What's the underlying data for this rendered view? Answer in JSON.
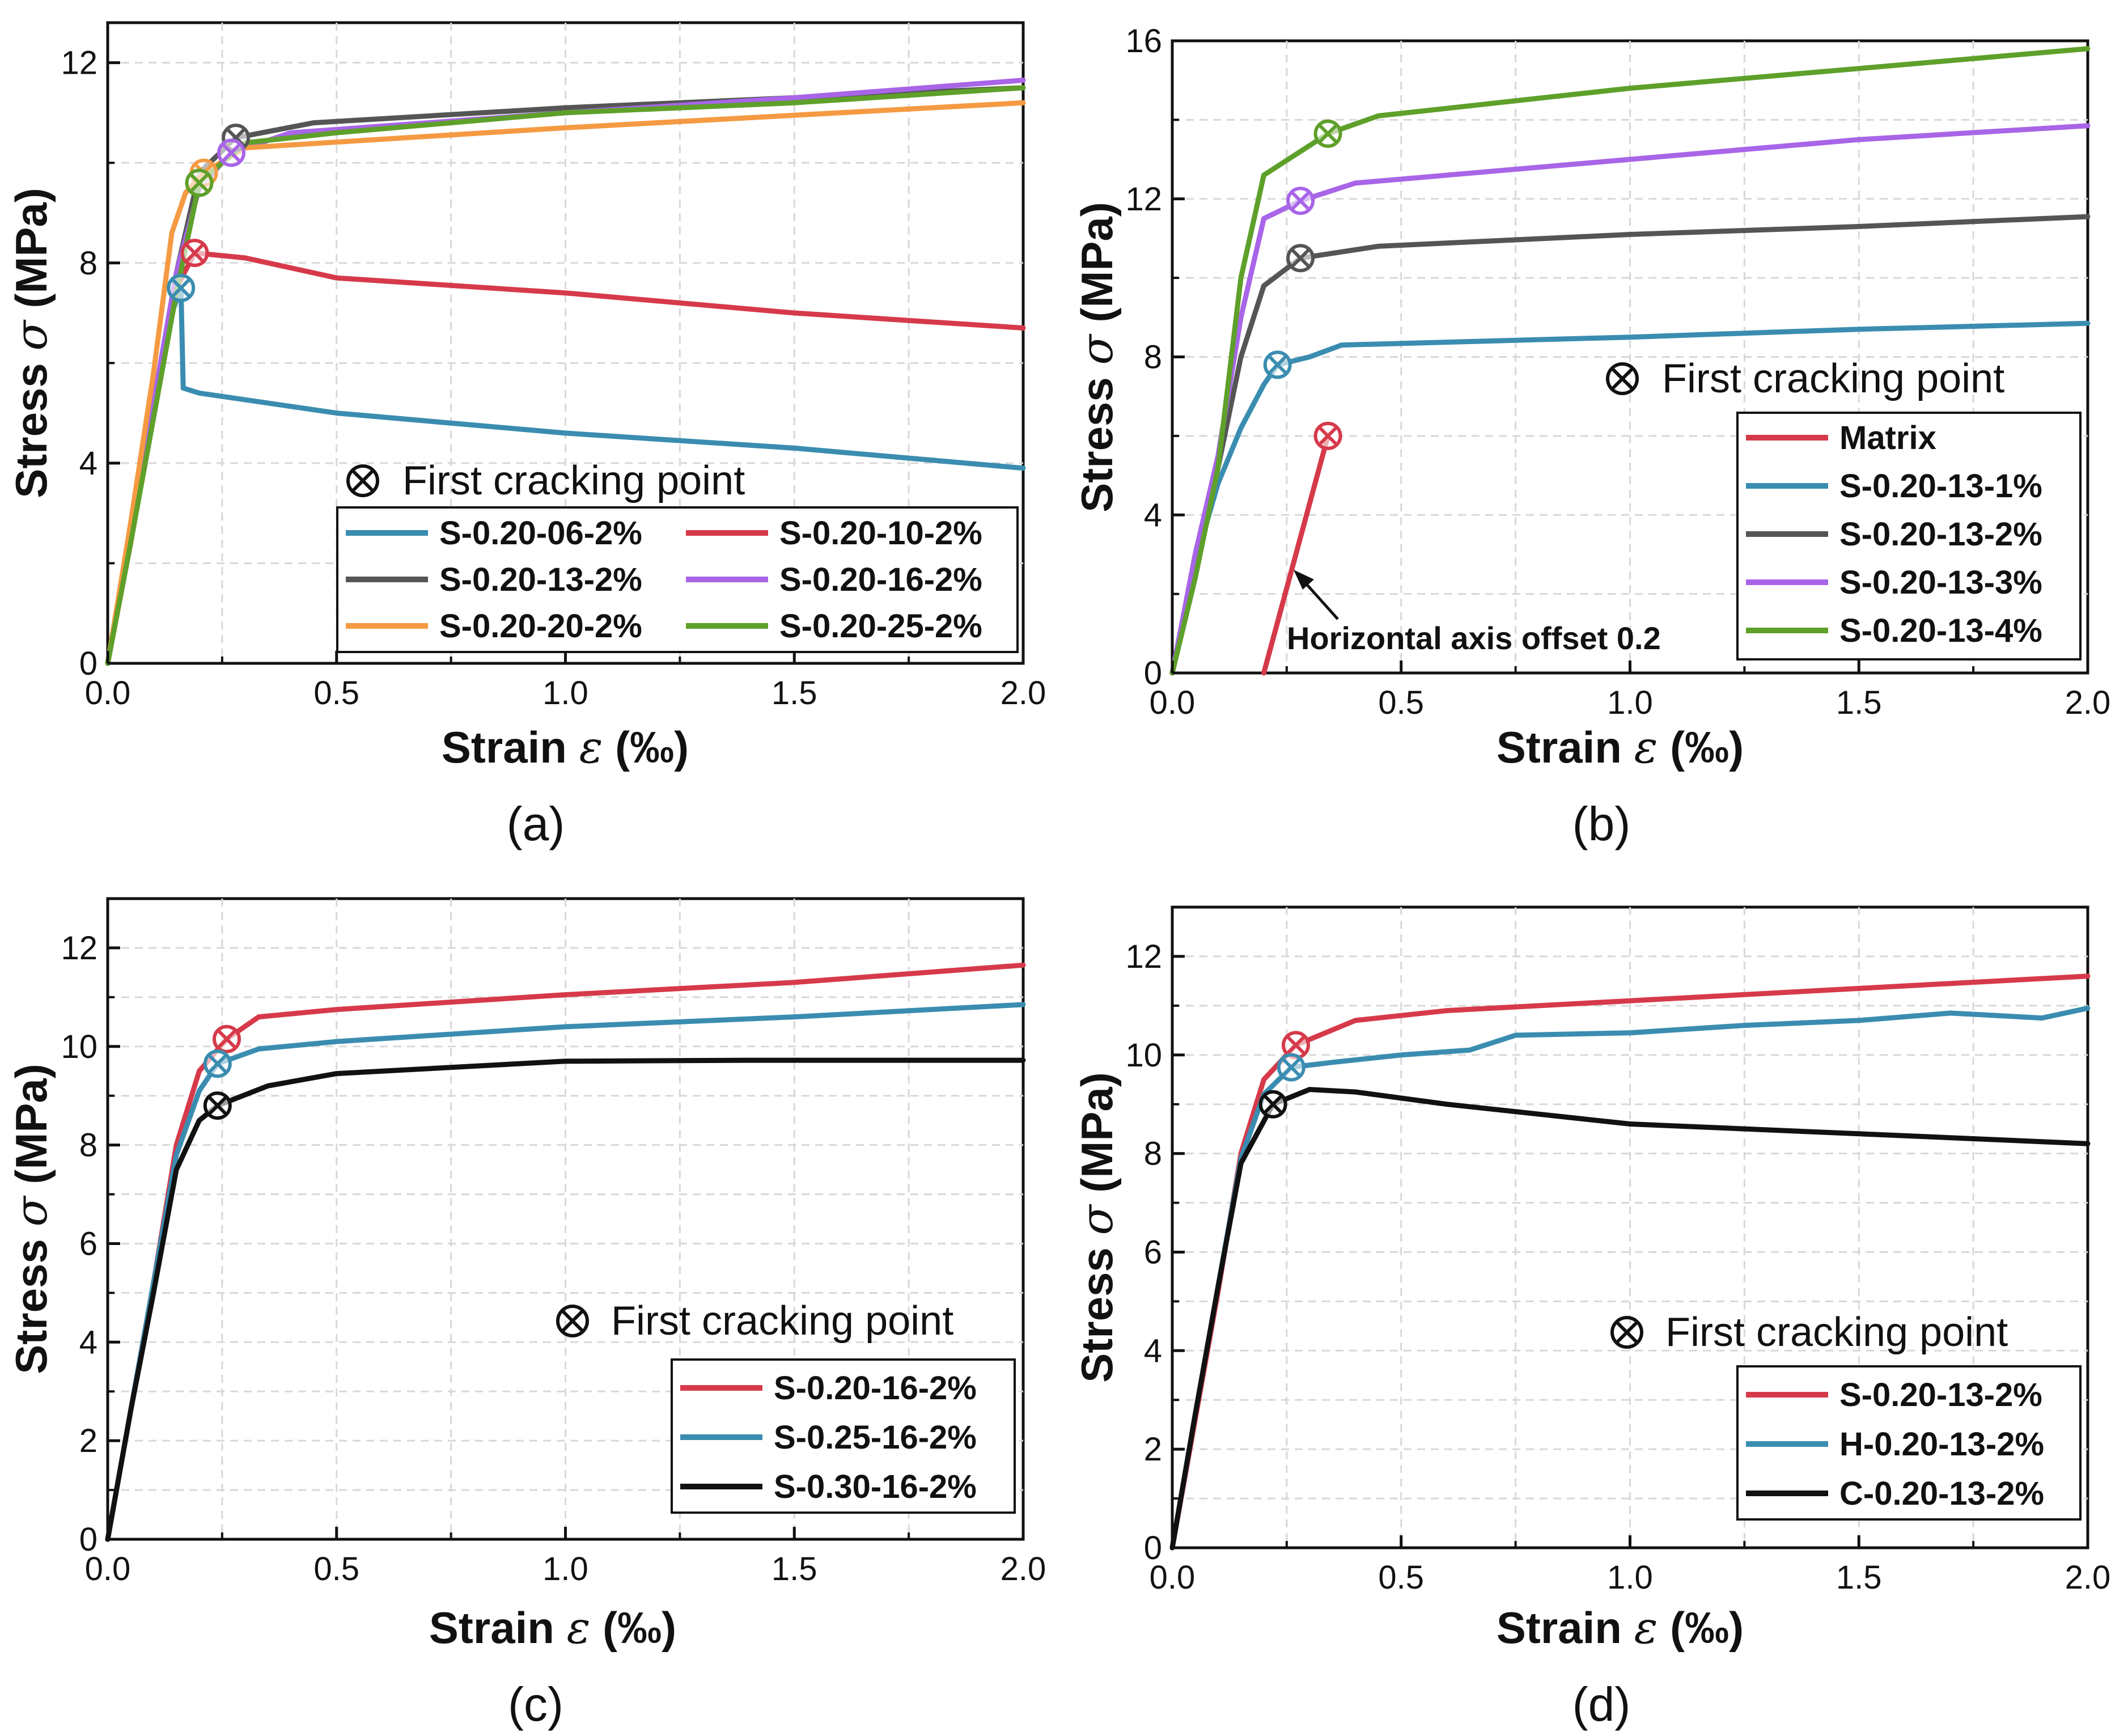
{
  "chart_data": [
    {
      "type": "line",
      "panel_label": "(a)",
      "xlabel": "Strain",
      "xsymbol": "ε",
      "xunit": "(‰)",
      "ylabel": "Stress",
      "ysymbol": "σ",
      "yunit": "(MPa)",
      "xlim": [
        0,
        2.0
      ],
      "ylim": [
        0,
        12.8
      ],
      "xticks": [
        0.0,
        0.5,
        1.0,
        1.5,
        2.0
      ],
      "xtick_labels": [
        "0.0",
        "0.5",
        "1.0",
        "1.5",
        "2.0"
      ],
      "yticks": [
        0,
        4,
        8,
        12
      ],
      "ytick_labels": [
        "0",
        "4",
        "8",
        "12"
      ],
      "grid": true,
      "legend_columns": 2,
      "legend_placement": "bottom-right",
      "first_cracking_label": "First cracking point",
      "annotation": null,
      "series": [
        {
          "name": "S-0.20-06-2%",
          "color": "#3a8db0",
          "x": [
            0,
            0.05,
            0.1,
            0.14,
            0.16,
            0.165,
            0.2,
            0.5,
            1.0,
            1.5,
            2.0
          ],
          "y": [
            0,
            2.6,
            5.0,
            7.0,
            7.5,
            5.5,
            5.4,
            5.0,
            4.6,
            4.3,
            3.9
          ],
          "fcp": [
            0.16,
            7.5
          ]
        },
        {
          "name": "S-0.20-10-2%",
          "color": "#d63a4a",
          "x": [
            0,
            0.05,
            0.1,
            0.15,
            0.19,
            0.3,
            0.5,
            1.0,
            1.5,
            2.0
          ],
          "y": [
            0,
            2.4,
            5.0,
            7.5,
            8.2,
            8.1,
            7.7,
            7.4,
            7.0,
            6.7
          ],
          "fcp": [
            0.19,
            8.2
          ]
        },
        {
          "name": "S-0.20-13-2%",
          "color": "#555555",
          "x": [
            0,
            0.05,
            0.1,
            0.15,
            0.2,
            0.28,
            0.45,
            1.0,
            1.5,
            2.0
          ],
          "y": [
            0,
            2.6,
            5.2,
            7.8,
            9.8,
            10.5,
            10.8,
            11.1,
            11.3,
            11.5
          ],
          "fcp": [
            0.28,
            10.5
          ]
        },
        {
          "name": "S-0.20-16-2%",
          "color": "#a865e8",
          "x": [
            0,
            0.05,
            0.1,
            0.15,
            0.2,
            0.27,
            0.4,
            1.0,
            1.5,
            2.0
          ],
          "y": [
            0,
            2.6,
            5.2,
            7.8,
            9.5,
            10.2,
            10.6,
            11.0,
            11.3,
            11.65
          ],
          "fcp": [
            0.27,
            10.2
          ]
        },
        {
          "name": "S-0.20-20-2%",
          "color": "#f59a42",
          "x": [
            0,
            0.05,
            0.1,
            0.14,
            0.17,
            0.21,
            0.3,
            1.0,
            1.5,
            2.0
          ],
          "y": [
            0,
            2.8,
            5.8,
            8.6,
            9.4,
            9.8,
            10.3,
            10.7,
            10.95,
            11.2
          ],
          "fcp": [
            0.21,
            9.8
          ]
        },
        {
          "name": "S-0.20-25-2%",
          "color": "#5ea02a",
          "x": [
            0,
            0.05,
            0.1,
            0.15,
            0.2,
            0.3,
            0.5,
            1.0,
            1.5,
            2.0
          ],
          "y": [
            0,
            2.4,
            4.9,
            7.4,
            9.6,
            10.4,
            10.6,
            11.0,
            11.2,
            11.5
          ],
          "fcp": [
            0.2,
            9.6
          ]
        }
      ]
    },
    {
      "type": "line",
      "panel_label": "(b)",
      "xlabel": "Strain",
      "xsymbol": "ε",
      "xunit": "(‰)",
      "ylabel": "Stress",
      "ysymbol": "σ",
      "yunit": "(MPa)",
      "xlim": [
        0,
        2.0
      ],
      "ylim": [
        0,
        16
      ],
      "xticks": [
        0.0,
        0.5,
        1.0,
        1.5,
        2.0
      ],
      "xtick_labels": [
        "0.0",
        "0.5",
        "1.0",
        "1.5",
        "2.0"
      ],
      "yticks": [
        0,
        4,
        8,
        12,
        16
      ],
      "ytick_labels": [
        "0",
        "4",
        "8",
        "12",
        "16"
      ],
      "grid": true,
      "legend_columns": 1,
      "legend_placement": "bottom-right",
      "first_cracking_label": "First cracking point",
      "annotation": {
        "text": "Horizontal axis offset 0.2",
        "x": 0.27,
        "y": 2.4
      },
      "series": [
        {
          "name": "Matrix",
          "color": "#d63a4a",
          "x": [
            0.2,
            0.27,
            0.34
          ],
          "y": [
            0,
            3.0,
            6.0
          ],
          "fcp": [
            0.34,
            6.0
          ]
        },
        {
          "name": "S-0.20-13-1%",
          "color": "#3a8db0",
          "x": [
            0,
            0.05,
            0.1,
            0.15,
            0.2,
            0.23,
            0.3,
            0.37,
            1.0,
            1.5,
            2.0
          ],
          "y": [
            0,
            2.8,
            4.8,
            6.2,
            7.3,
            7.8,
            8.0,
            8.3,
            8.5,
            8.7,
            8.85
          ],
          "fcp": [
            0.23,
            7.8
          ]
        },
        {
          "name": "S-0.20-13-2%",
          "color": "#555555",
          "x": [
            0,
            0.05,
            0.1,
            0.15,
            0.2,
            0.28,
            0.45,
            1.0,
            1.5,
            2.0
          ],
          "y": [
            0,
            2.6,
            5.2,
            8.0,
            9.8,
            10.5,
            10.8,
            11.1,
            11.3,
            11.55
          ],
          "fcp": [
            0.28,
            10.5
          ]
        },
        {
          "name": "S-0.20-13-3%",
          "color": "#a865e8",
          "x": [
            0,
            0.05,
            0.1,
            0.15,
            0.2,
            0.28,
            0.4,
            1.0,
            1.5,
            2.0
          ],
          "y": [
            0,
            3.0,
            5.5,
            9.0,
            11.5,
            11.95,
            12.4,
            13.0,
            13.5,
            13.85
          ],
          "fcp": [
            0.28,
            11.95
          ]
        },
        {
          "name": "S-0.20-13-4%",
          "color": "#5ea02a",
          "x": [
            0,
            0.05,
            0.1,
            0.15,
            0.2,
            0.34,
            0.45,
            1.0,
            1.5,
            2.0
          ],
          "y": [
            0,
            2.4,
            5.2,
            10.0,
            12.6,
            13.65,
            14.1,
            14.8,
            15.3,
            15.8
          ],
          "fcp": [
            0.34,
            13.65
          ]
        }
      ]
    },
    {
      "type": "line",
      "panel_label": "(c)",
      "xlabel": "Strain",
      "xsymbol": "ε",
      "xunit": "(‰)",
      "ylabel": "Stress",
      "ysymbol": "σ",
      "yunit": "(MPa)",
      "xlim": [
        0,
        2.0
      ],
      "ylim": [
        0,
        13
      ],
      "xticks": [
        0.0,
        0.5,
        1.0,
        1.5,
        2.0
      ],
      "xtick_labels": [
        "0.0",
        "0.5",
        "1.0",
        "1.5",
        "2.0"
      ],
      "yticks": [
        0,
        2,
        4,
        6,
        8,
        10,
        12
      ],
      "ytick_labels": [
        "0",
        "2",
        "4",
        "6",
        "8",
        "10",
        "12"
      ],
      "grid": true,
      "legend_columns": 1,
      "legend_placement": "bottom-right",
      "first_cracking_label": "First cracking point",
      "annotation": null,
      "series": [
        {
          "name": "S-0.20-16-2%",
          "color": "#d63a4a",
          "x": [
            0,
            0.05,
            0.1,
            0.15,
            0.2,
            0.26,
            0.33,
            0.5,
            1.0,
            1.5,
            2.0
          ],
          "y": [
            0,
            2.6,
            5.2,
            8.0,
            9.5,
            10.15,
            10.6,
            10.75,
            11.05,
            11.3,
            11.65
          ],
          "fcp": [
            0.26,
            10.15
          ]
        },
        {
          "name": "S-0.25-16-2%",
          "color": "#3a8db0",
          "x": [
            0,
            0.05,
            0.1,
            0.15,
            0.2,
            0.24,
            0.33,
            0.5,
            1.0,
            1.5,
            2.0
          ],
          "y": [
            0,
            2.6,
            5.2,
            7.8,
            9.1,
            9.65,
            9.95,
            10.1,
            10.4,
            10.6,
            10.85
          ],
          "fcp": [
            0.24,
            9.65
          ]
        },
        {
          "name": "S-0.30-16-2%",
          "color": "#111111",
          "x": [
            0,
            0.05,
            0.1,
            0.15,
            0.2,
            0.24,
            0.35,
            0.5,
            1.0,
            1.4,
            2.0
          ],
          "y": [
            0,
            2.6,
            5.0,
            7.5,
            8.5,
            8.8,
            9.2,
            9.45,
            9.7,
            9.72,
            9.72
          ],
          "fcp": [
            0.24,
            8.8
          ]
        }
      ]
    },
    {
      "type": "line",
      "panel_label": "(d)",
      "xlabel": "Strain",
      "xsymbol": "ε",
      "xunit": "(‰)",
      "ylabel": "Stress",
      "ysymbol": "σ",
      "yunit": "(MPa)",
      "xlim": [
        0,
        2.0
      ],
      "ylim": [
        0,
        13
      ],
      "xticks": [
        0.0,
        0.5,
        1.0,
        1.5,
        2.0
      ],
      "xtick_labels": [
        "0.0",
        "0.5",
        "1.0",
        "1.5",
        "2.0"
      ],
      "yticks": [
        0,
        2,
        4,
        6,
        8,
        10,
        12
      ],
      "ytick_labels": [
        "0",
        "2",
        "4",
        "6",
        "8",
        "10",
        "12"
      ],
      "grid": true,
      "legend_columns": 1,
      "legend_placement": "bottom-right",
      "first_cracking_label": "First cracking point",
      "annotation": null,
      "series": [
        {
          "name": "S-0.20-13-2%",
          "color": "#d63a4a",
          "x": [
            0,
            0.05,
            0.1,
            0.15,
            0.2,
            0.27,
            0.4,
            0.6,
            1.0,
            1.5,
            2.0
          ],
          "y": [
            0,
            2.6,
            5.2,
            8.0,
            9.5,
            10.2,
            10.7,
            10.9,
            11.1,
            11.35,
            11.6
          ],
          "fcp": [
            0.27,
            10.2
          ]
        },
        {
          "name": "H-0.20-13-2%",
          "color": "#3a8db0",
          "x": [
            0,
            0.05,
            0.1,
            0.15,
            0.2,
            0.26,
            0.35,
            0.5,
            0.65,
            0.75,
            1.0,
            1.25,
            1.5,
            1.7,
            1.9,
            2.0
          ],
          "y": [
            0,
            2.7,
            5.3,
            7.9,
            9.2,
            9.75,
            9.85,
            10.0,
            10.1,
            10.4,
            10.45,
            10.6,
            10.7,
            10.85,
            10.75,
            10.95
          ],
          "fcp": [
            0.26,
            9.75
          ]
        },
        {
          "name": "C-0.20-13-2%",
          "color": "#111111",
          "x": [
            0,
            0.05,
            0.1,
            0.15,
            0.22,
            0.3,
            0.4,
            0.6,
            1.0,
            1.5,
            2.0
          ],
          "y": [
            0,
            2.7,
            5.3,
            7.8,
            9.0,
            9.3,
            9.25,
            9.0,
            8.6,
            8.4,
            8.2
          ],
          "fcp": [
            0.22,
            9.0
          ]
        }
      ]
    }
  ]
}
